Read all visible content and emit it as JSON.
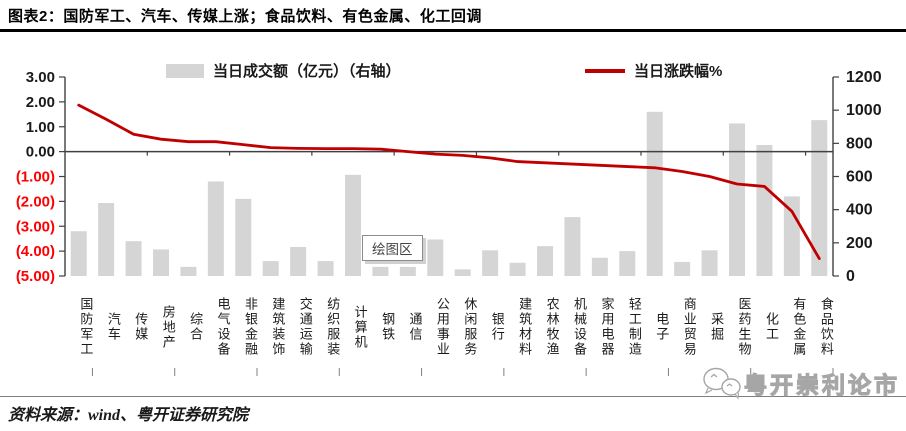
{
  "header": {
    "title": "图表2：国防军工、汽车、传媒上涨；食品饮料、有色金属、化工回调"
  },
  "legend": {
    "bar_label": "当日成交额（亿元）（右轴）",
    "line_label": "当日涨跌幅%"
  },
  "tooltip": {
    "label": "绘图区"
  },
  "footer": {
    "source": "资料来源：wind、粤开证券研究院"
  },
  "watermark": {
    "text": "粤开崇利论市"
  },
  "colors": {
    "bar": "#d5d5d5",
    "line": "#c00000",
    "axis": "#404040",
    "tick_label": "#1a1a1a",
    "negative_tick_label": "#ff0000",
    "minor_tick": "#808080"
  },
  "chart_data": {
    "type": "bar",
    "subtype": "bar+line combo, dual axis",
    "title": "",
    "categories": [
      "国防军工",
      "汽车",
      "传媒",
      "房地产",
      "综合",
      "电气设备",
      "非银金融",
      "建筑装饰",
      "交通运输",
      "纺织服装",
      "计算机",
      "钢铁",
      "通信",
      "公用事业",
      "休闲服务",
      "银行",
      "建筑材料",
      "农林牧渔",
      "机械设备",
      "家用电器",
      "轻工制造",
      "电子",
      "商业贸易",
      "采掘",
      "医药生物",
      "化工",
      "有色金属",
      "食品饮料"
    ],
    "series": [
      {
        "name": "当日成交额（亿元）（右轴）",
        "type": "bar",
        "axis": "right",
        "values": [
          270,
          440,
          210,
          160,
          55,
          570,
          465,
          90,
          175,
          90,
          610,
          55,
          55,
          220,
          40,
          155,
          80,
          180,
          355,
          110,
          150,
          990,
          85,
          155,
          920,
          790,
          480,
          940
        ]
      },
      {
        "name": "当日涨跌幅%",
        "type": "line",
        "axis": "left",
        "values": [
          1.87,
          1.3,
          0.7,
          0.5,
          0.4,
          0.4,
          0.28,
          0.16,
          0.13,
          0.12,
          0.12,
          0.1,
          0.0,
          -0.1,
          -0.15,
          -0.25,
          -0.4,
          -0.45,
          -0.5,
          -0.55,
          -0.6,
          -0.65,
          -0.8,
          -1.0,
          -1.3,
          -1.4,
          -2.4,
          -4.3
        ]
      }
    ],
    "left_axis": {
      "min": -5,
      "max": 3,
      "tick_labels": [
        "3.00",
        "2.00",
        "1.00",
        "0.00",
        "(1.00)",
        "(2.00)",
        "(3.00)",
        "(4.00)",
        "(5.00)"
      ]
    },
    "right_axis": {
      "min": 0,
      "max": 1200,
      "tick_labels": [
        "1200",
        "1000",
        "800",
        "600",
        "400",
        "200",
        "0"
      ]
    },
    "legend_position": "top",
    "grid": false
  }
}
